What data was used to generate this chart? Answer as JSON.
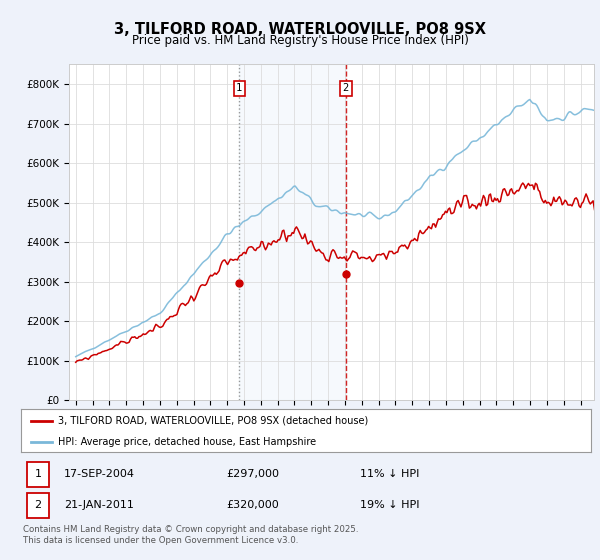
{
  "title": "3, TILFORD ROAD, WATERLOOVILLE, PO8 9SX",
  "subtitle": "Price paid vs. HM Land Registry's House Price Index (HPI)",
  "ylabel_ticks": [
    "£0",
    "£100K",
    "£200K",
    "£300K",
    "£400K",
    "£500K",
    "£600K",
    "£700K",
    "£800K"
  ],
  "ytick_values": [
    0,
    100000,
    200000,
    300000,
    400000,
    500000,
    600000,
    700000,
    800000
  ],
  "ylim": [
    0,
    850000
  ],
  "xlim_start": 1994.6,
  "xlim_end": 2025.8,
  "line_color_hpi": "#7ab8d9",
  "line_color_paid": "#cc0000",
  "marker1_date": 2004.72,
  "marker2_date": 2011.05,
  "marker1_price": 297000,
  "marker2_price": 320000,
  "legend_label1": "3, TILFORD ROAD, WATERLOOVILLE, PO8 9SX (detached house)",
  "legend_label2": "HPI: Average price, detached house, East Hampshire",
  "annotation1_date": "17-SEP-2004",
  "annotation1_price": "£297,000",
  "annotation1_pct": "11% ↓ HPI",
  "annotation2_date": "21-JAN-2011",
  "annotation2_price": "£320,000",
  "annotation2_pct": "19% ↓ HPI",
  "footnote": "Contains HM Land Registry data © Crown copyright and database right 2025.\nThis data is licensed under the Open Government Licence v3.0.",
  "background_color": "#eef2fa",
  "plot_bg_color": "#ffffff",
  "title_fontsize": 10.5,
  "subtitle_fontsize": 8.5,
  "hpi_seed": 42,
  "paid_seed": 99
}
